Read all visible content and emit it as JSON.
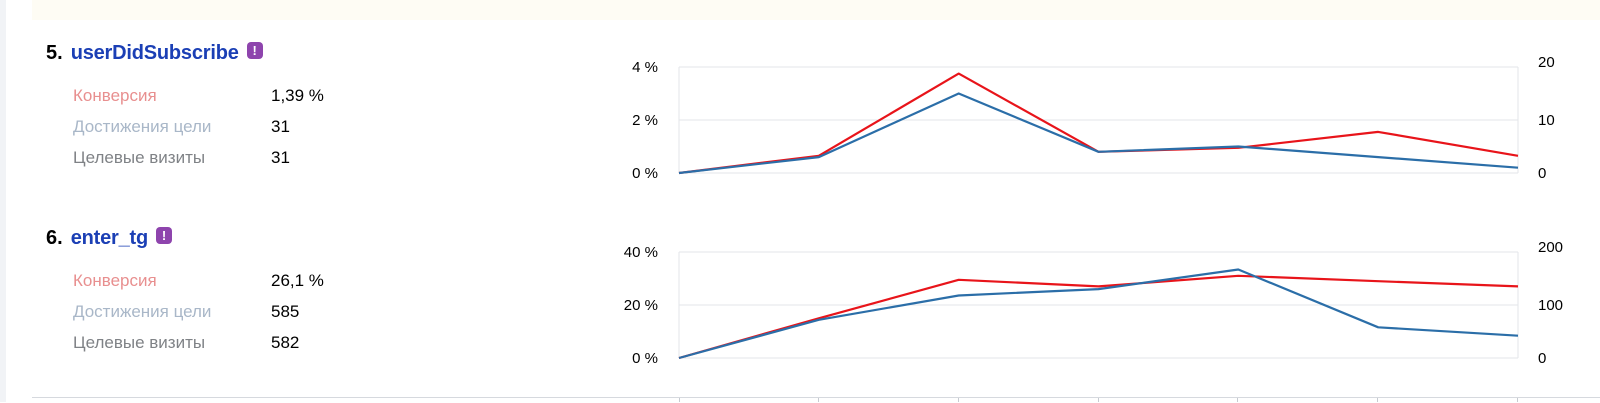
{
  "colors": {
    "conversion": "#e23a2a",
    "achievements": "#a5b5c9",
    "visits": "#7f8286",
    "line_red": "#e8141a",
    "line_blue": "#2b6ea8",
    "goal_link": "#1b3fb5",
    "warning_badge": "#8e44ad"
  },
  "goals": [
    {
      "number": "5.",
      "name": "userDidSubscribe",
      "warning_icon": "exclamation-badge-icon",
      "metrics": [
        {
          "label": "Конверсия",
          "value": "1,39 %",
          "color": "#e88f8f"
        },
        {
          "label": "Достижения цели",
          "value": "31",
          "color": "#a9b7c8"
        },
        {
          "label": "Целевые визиты",
          "value": "31",
          "color": "#7f8286"
        }
      ],
      "chart_data": {
        "type": "line",
        "left_axis": {
          "ticks": [
            "0 %",
            "2 %",
            "4 %"
          ],
          "range": [
            0,
            4
          ]
        },
        "right_axis": {
          "ticks": [
            "0",
            "10",
            "20"
          ],
          "range": [
            0,
            20
          ]
        },
        "series": [
          {
            "axis": "left",
            "color": "#e8141a",
            "values": [
              0,
              0.65,
              3.75,
              0.8,
              0.95,
              1.55,
              0.65
            ]
          },
          {
            "axis": "right",
            "color": "#2b6ea8",
            "values": [
              0,
              3,
              15,
              4,
              5,
              3,
              1
            ]
          }
        ]
      }
    },
    {
      "number": "6.",
      "name": "enter_tg",
      "warning_icon": "exclamation-badge-icon",
      "metrics": [
        {
          "label": "Конверсия",
          "value": "26,1 %",
          "color": "#e88f8f"
        },
        {
          "label": "Достижения цели",
          "value": "585",
          "color": "#a9b7c8"
        },
        {
          "label": "Целевые визиты",
          "value": "582",
          "color": "#7f8286"
        }
      ],
      "chart_data": {
        "type": "line",
        "left_axis": {
          "ticks": [
            "0 %",
            "20 %",
            "40 %"
          ],
          "range": [
            0,
            40
          ]
        },
        "right_axis": {
          "ticks": [
            "0",
            "100",
            "200"
          ],
          "range": [
            0,
            200
          ]
        },
        "series": [
          {
            "axis": "left",
            "color": "#e8141a",
            "values": [
              0,
              15,
              29.5,
              27,
              31,
              29,
              27
            ]
          },
          {
            "axis": "right",
            "color": "#2b6ea8",
            "values": [
              0,
              72,
              118,
              130,
              167,
              58,
              42
            ]
          }
        ]
      }
    }
  ]
}
